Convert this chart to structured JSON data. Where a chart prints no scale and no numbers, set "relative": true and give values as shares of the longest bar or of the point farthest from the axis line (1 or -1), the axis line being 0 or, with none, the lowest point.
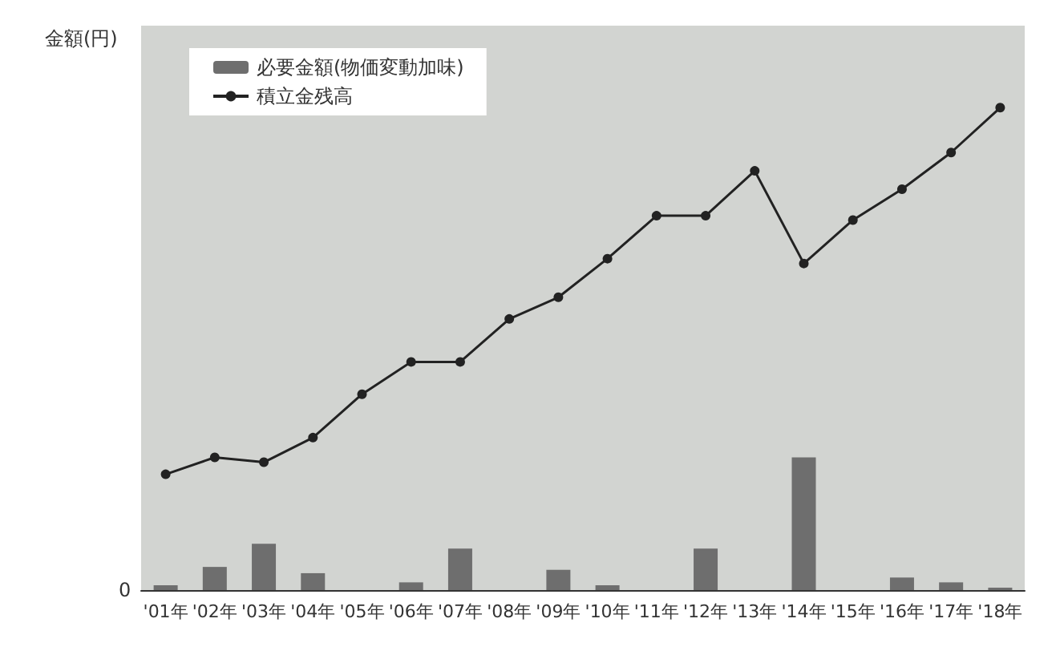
{
  "chart_data": {
    "type": "bar",
    "relative": true,
    "ylabel": "金額(円)",
    "annotations": [
      "0"
    ],
    "categories": [
      "'01年",
      "'02年",
      "'03年",
      "'04年",
      "'05年",
      "'06年",
      "'07年",
      "'08年",
      "'09年",
      "'10年",
      "'11年",
      "'12年",
      "'13年",
      "'14年",
      "'15年",
      "'16年",
      "'17年",
      "'18年"
    ],
    "series": [
      {
        "name": "必要金額(物価変動加味)",
        "color": "#6e6e6e",
        "values": [
          0.01,
          0.048,
          0.096,
          0.035,
          null,
          0.016,
          0.086,
          null,
          0.042,
          0.01,
          null,
          0.086,
          null,
          0.275,
          null,
          0.026,
          0.016,
          0.005
        ]
      },
      {
        "name": "積立金残高",
        "type": "line",
        "color": "#222222",
        "marker": "circle",
        "values": [
          0.24,
          0.275,
          0.265,
          0.316,
          0.406,
          0.473,
          0.473,
          0.562,
          0.607,
          0.687,
          0.776,
          0.776,
          0.869,
          0.677,
          0.767,
          0.831,
          0.907,
          1
        ]
      }
    ],
    "legend": "top left"
  }
}
